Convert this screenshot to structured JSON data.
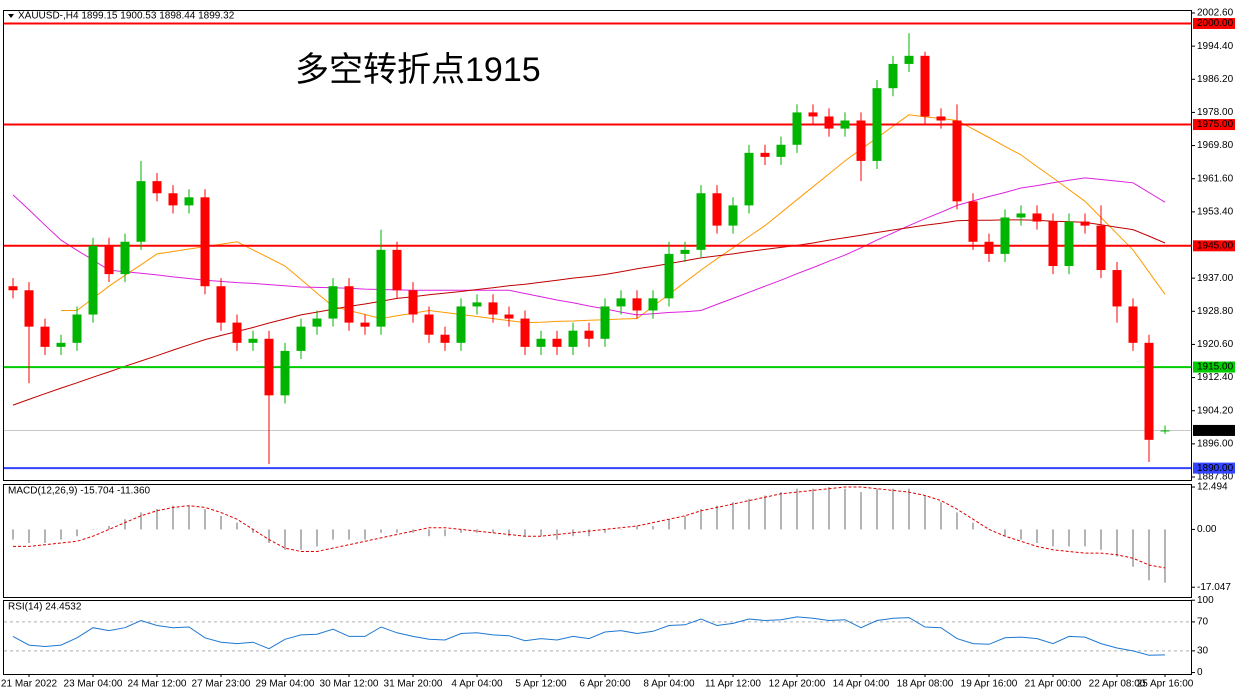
{
  "chart_data": [
    {
      "type": "candlestick",
      "title": "XAUUSD-,H4 1899.15 1900.53 1898.44 1899.32",
      "annotation": "多空转折点1915",
      "annotation_color": "#ff0000",
      "categories": [
        null,
        "21 Mar 2022",
        null,
        null,
        null,
        "23 Mar 04:00",
        null,
        null,
        null,
        "24 Mar 12:00",
        null,
        null,
        null,
        "27 Mar 23:00",
        null,
        null,
        null,
        "29 Mar 04:00",
        null,
        null,
        null,
        "30 Mar 12:00",
        null,
        null,
        null,
        "31 Mar 20:00",
        null,
        null,
        null,
        "4 Apr 04:00",
        null,
        null,
        null,
        "5 Apr 12:00",
        null,
        null,
        null,
        "6 Apr 20:00",
        null,
        null,
        null,
        "8 Apr 04:00",
        null,
        null,
        null,
        "11 Apr 12:00",
        null,
        null,
        null,
        "12 Apr 20:00",
        null,
        null,
        null,
        "14 Apr 04:00",
        null,
        null,
        null,
        "18 Apr 08:00",
        null,
        null,
        null,
        "19 Apr 16:00",
        null,
        null,
        null,
        "21 Apr 00:00",
        null,
        null,
        null,
        "22 Apr 08:00",
        null,
        null,
        "25 Apr 16:00"
      ],
      "open": [
        1935,
        1934,
        1925,
        1920,
        1921,
        1928,
        1945,
        1938,
        1946,
        1961,
        1958,
        1955,
        1957,
        1935,
        1926,
        1921,
        1922,
        1908,
        1919,
        1925,
        1927,
        1935,
        1926,
        1925,
        1944,
        1934,
        1928,
        1923,
        1921,
        1930,
        1931,
        1928,
        1927,
        1920,
        1922,
        1920,
        1924,
        1922,
        1930,
        1932,
        1929,
        1932,
        1943,
        1944,
        1958,
        1950,
        1955,
        1968,
        1967,
        1970,
        1978,
        1977,
        1974,
        1976,
        1966,
        1984,
        1990,
        1992,
        1977,
        1976,
        1956,
        1946,
        1943,
        1952,
        1953,
        1951,
        1940,
        1951,
        1950,
        1939,
        1930,
        1921,
        1899.15
      ],
      "high": [
        1937,
        1936,
        1927,
        1923,
        1930,
        1947,
        1947,
        1948,
        1966,
        1963,
        1960,
        1959,
        1959,
        1937,
        1928,
        1924,
        1924,
        1921,
        1927,
        1929,
        1937,
        1937,
        1928,
        1949,
        1946,
        1936,
        1930,
        1925,
        1932,
        1933,
        1933,
        1930,
        1929,
        1924,
        1924,
        1926,
        1926,
        1932,
        1934,
        1934,
        1934,
        1946,
        1946,
        1960,
        1960,
        1957,
        1970,
        1970,
        1972,
        1980,
        1980,
        1979,
        1978,
        1978,
        1986,
        1992,
        1997.6,
        1993,
        1979,
        1980,
        1958,
        1948,
        1954,
        1955,
        1955,
        1953,
        1953,
        1953,
        1955,
        1941,
        1932,
        1923,
        1900.53
      ],
      "low": [
        1932,
        1911,
        1918,
        1918,
        1919,
        1926,
        1936,
        1936,
        1944,
        1956,
        1953,
        1953,
        1933,
        1924,
        1919,
        1919,
        1891,
        1906,
        1917,
        1923,
        1925,
        1924,
        1923,
        1923,
        1932,
        1926,
        1921,
        1919,
        1919,
        1928,
        1926,
        1925,
        1918,
        1918,
        1918,
        1918,
        1920,
        1920,
        1928,
        1927,
        1927,
        1930,
        1941,
        1942,
        1948,
        1948,
        1953,
        1965,
        1965,
        1968,
        1975,
        1972,
        1972,
        1961,
        1964,
        1982,
        1988,
        1975,
        1974,
        1954,
        1944,
        1941,
        1941,
        1950,
        1949,
        1938,
        1938,
        1948,
        1937,
        1926,
        1919,
        1891.5,
        1898.44
      ],
      "close": [
        1934,
        1925,
        1920,
        1921,
        1928,
        1945,
        1938,
        1946,
        1961,
        1958,
        1955,
        1957,
        1935,
        1926,
        1921,
        1922,
        1908,
        1919,
        1925,
        1927,
        1935,
        1926,
        1925,
        1944,
        1934,
        1928,
        1923,
        1921,
        1930,
        1931,
        1928,
        1927,
        1920,
        1922,
        1920,
        1924,
        1922,
        1930,
        1932,
        1929,
        1932,
        1943,
        1944,
        1958,
        1950,
        1955,
        1968,
        1967,
        1970,
        1978,
        1977,
        1974,
        1976,
        1966,
        1984,
        1990,
        1992,
        1977,
        1976,
        1956,
        1946,
        1943,
        1952,
        1953,
        1951,
        1940,
        1951,
        1950,
        1939,
        1930,
        1921,
        1897,
        1899.32
      ],
      "colors": {
        "up": "#00b400",
        "down": "#ff0000"
      },
      "lines": [
        {
          "color": "#ff9900",
          "values": [
            null,
            null,
            null,
            1929,
            1929,
            1932,
            1935,
            1937.7,
            1940.3,
            1943,
            1943.6,
            1944.2,
            1944.8,
            1945.4,
            1946,
            1944,
            1942,
            1940,
            1936.7,
            1933.3,
            1930,
            1929,
            1928,
            1927,
            1927.7,
            1928.3,
            1929,
            1928.5,
            1928,
            1927.5,
            1927,
            1926.5,
            1926,
            1926.1,
            1926.3,
            1926.4,
            1926.6,
            1926.7,
            1926.9,
            1927,
            1930,
            1933,
            1936,
            1939,
            1941.8,
            1944.5,
            1947.3,
            1950,
            1953.2,
            1956.4,
            1959.6,
            1962.8,
            1966,
            1968.9,
            1971.7,
            1974.6,
            1977.4,
            1976.9,
            1976.5,
            1976,
            1973.9,
            1971.8,
            1969.6,
            1967.5,
            1964.6,
            1961.8,
            1958.9,
            1956,
            1952,
            1948,
            1944,
            1938.5,
            1933
          ]
        },
        {
          "color": "#dd22dd",
          "values": [
            1957.6,
            1953.9,
            1950.1,
            1946.4,
            1943.9,
            1941.5,
            1939,
            1938.6,
            1938.2,
            1937.8,
            1937.3,
            1936.9,
            1936.5,
            1936.2,
            1935.9,
            1935.7,
            1935.4,
            1935.1,
            1934.8,
            1934.7,
            1934.6,
            1934.5,
            1934.3,
            1934.2,
            1934.1,
            1934,
            1934,
            1934,
            1934,
            1934,
            1934,
            1934,
            1933.2,
            1932.4,
            1931.6,
            1930.9,
            1930.1,
            1929.4,
            1928.6,
            1927.9,
            1928.2,
            1928.5,
            1928.7,
            1929,
            1930.5,
            1932,
            1933.5,
            1935,
            1936.5,
            1938.1,
            1939.6,
            1941.2,
            1942.7,
            1944.5,
            1946.4,
            1948.2,
            1950,
            1951.7,
            1953.3,
            1955,
            1956.1,
            1957.2,
            1958.2,
            1959.3,
            1959.9,
            1960.6,
            1961.2,
            1961.8,
            1961.4,
            1961,
            1960.6,
            1958.2,
            1955.8
          ]
        },
        {
          "color": "#c00000",
          "values": [
            1905.6,
            1907,
            1908.4,
            1909.8,
            1911.1,
            1912.5,
            1913.8,
            1915.2,
            1916.5,
            1917.8,
            1919.2,
            1920.5,
            1921.8,
            1922.8,
            1923.8,
            1924.8,
            1925.9,
            1926.9,
            1927.9,
            1928.6,
            1929.3,
            1930,
            1930.6,
            1931.3,
            1932,
            1932.4,
            1932.9,
            1933.3,
            1933.7,
            1934.2,
            1934.6,
            1935.1,
            1935.5,
            1936,
            1936.5,
            1937,
            1937.4,
            1937.9,
            1938.6,
            1939.3,
            1939.9,
            1940.6,
            1941.3,
            1942,
            1942.5,
            1943,
            1943.6,
            1944.1,
            1944.6,
            1945.1,
            1945.7,
            1946.4,
            1947,
            1947.6,
            1948.3,
            1948.9,
            1949.5,
            1950.1,
            1950.6,
            1951.2,
            1951.3,
            1951.3,
            1951.4,
            1951.4,
            1951.3,
            1951.1,
            1951,
            1950.8,
            1950.2,
            1949.6,
            1949,
            1947.4,
            1945.7
          ]
        }
      ],
      "levels": [
        {
          "value": 2000,
          "label": "2000.00",
          "color": "#ff0000",
          "width": 2
        },
        {
          "value": 1975,
          "label": "1975.00",
          "color": "#ff0000",
          "width": 2
        },
        {
          "value": 1945,
          "label": "1945.00",
          "color": "#ff0000",
          "width": 2
        },
        {
          "value": 1915,
          "label": "1915.00",
          "color": "#00cc00",
          "width": 2
        },
        {
          "value": 1890,
          "label": "1890.00",
          "color": "#3344ff",
          "width": 2
        },
        {
          "value": 1899.32,
          "label": "1899.32",
          "color": "#c8c8c8",
          "width": 1,
          "label_background": "#000000"
        }
      ],
      "ylim": [
        1887.06,
        2003.34
      ],
      "yticks": [
        {
          "value": 2002.6,
          "label": "2002.60"
        },
        {
          "value": 1994.4,
          "label": "1994.40"
        },
        {
          "value": 1986.2,
          "label": "1986.20"
        },
        {
          "value": 1978,
          "label": "1978.00"
        },
        {
          "value": 1969.8,
          "label": "1969.80"
        },
        {
          "value": 1961.6,
          "label": "1961.60"
        },
        {
          "value": 1953.4,
          "label": "1953.40"
        },
        {
          "value": 1937,
          "label": "1937.00"
        },
        {
          "value": 1928.8,
          "label": "1928.80"
        },
        {
          "value": 1920.6,
          "label": "1920.60"
        },
        {
          "value": 1912.4,
          "label": "1912.40"
        },
        {
          "value": 1904.2,
          "label": "1904.20"
        },
        {
          "value": 1896,
          "label": "1896.00"
        },
        {
          "value": 1887.8,
          "label": "1887.80"
        }
      ]
    },
    {
      "type": "macd",
      "title": "MACD(12,26,9) -15.704 -11.360",
      "histogram": {
        "color": "#b4b4b4",
        "values": [
          -3,
          -4,
          -4,
          -3,
          -2,
          0,
          1,
          3,
          5,
          6,
          7,
          7,
          6,
          4,
          2,
          -1,
          -4,
          -6,
          -6,
          -5,
          -3,
          -3,
          -3,
          -1,
          -1,
          -1,
          -2,
          -2,
          -1,
          -1,
          -1,
          -2,
          -2,
          -2,
          -3,
          -2,
          -2,
          -1,
          0,
          1,
          1,
          3,
          4,
          6,
          7,
          8,
          9,
          10,
          11,
          12,
          12,
          12.5,
          12,
          11,
          12,
          12,
          12,
          10,
          8,
          5,
          2,
          0,
          -2,
          -3,
          -4,
          -5,
          -5,
          -5,
          -6,
          -8,
          -11,
          -15,
          -15.704
        ]
      },
      "signal": {
        "color": "#e00000",
        "values": [
          -5,
          -5,
          -4.5,
          -4,
          -3.5,
          -2,
          0,
          2,
          4,
          5.5,
          6.5,
          7,
          6.5,
          5,
          3,
          0,
          -3,
          -5.5,
          -6.5,
          -6.5,
          -5.5,
          -4.5,
          -3.5,
          -2.5,
          -1.5,
          -0.5,
          0.5,
          0.5,
          0,
          -0.5,
          -1,
          -1.5,
          -2,
          -2,
          -1.5,
          -1,
          -0.5,
          0,
          0.5,
          1,
          2,
          3,
          4,
          5.5,
          6.5,
          7.5,
          8.5,
          9.5,
          10.5,
          11,
          11.5,
          12,
          12.5,
          12.5,
          12,
          11.5,
          11,
          10,
          8.5,
          6,
          3,
          0,
          -2,
          -3.5,
          -5,
          -6,
          -6.5,
          -7,
          -7,
          -7.5,
          -8.5,
          -10.5,
          -11.36
        ]
      },
      "ylim": [
        -19.93,
        13.39
      ],
      "yticks": [
        12.494,
        {
          "value": 0,
          "label": "0.00"
        },
        -17.047
      ]
    },
    {
      "type": "line",
      "title": "RSI(14) 24.4532",
      "color": "#1e78d2",
      "values": [
        50,
        38,
        36,
        38,
        48,
        62,
        58,
        62,
        72,
        65,
        62,
        63,
        48,
        42,
        40,
        42,
        33,
        46,
        52,
        53,
        60,
        50,
        50,
        63,
        55,
        50,
        46,
        45,
        54,
        55,
        52,
        51,
        44,
        47,
        45,
        50,
        47,
        56,
        58,
        54,
        57,
        65,
        66,
        74,
        65,
        68,
        74,
        72,
        73,
        77,
        75,
        72,
        73,
        62,
        72,
        75,
        76,
        63,
        62,
        47,
        40,
        39,
        48,
        49,
        47,
        40,
        50,
        49,
        40,
        34,
        30,
        24,
        24.4532
      ],
      "levels": [
        70,
        30
      ],
      "ylim": [
        -2,
        100.3
      ],
      "yticks": [
        100,
        70,
        30,
        0
      ]
    }
  ]
}
